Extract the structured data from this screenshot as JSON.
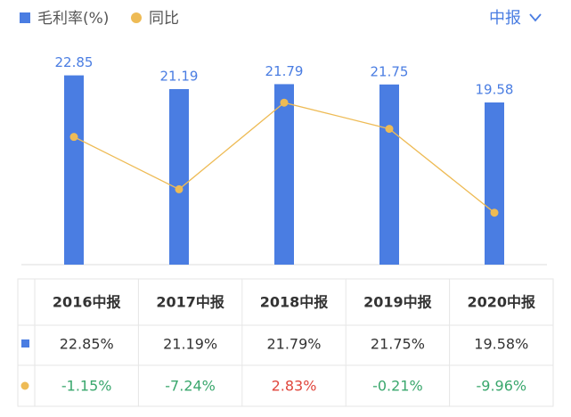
{
  "chart_data": {
    "type": "bar_line",
    "categories": [
      "2016中报",
      "2017中报",
      "2018中报",
      "2019中报",
      "2020中报"
    ],
    "series": [
      {
        "name": "毛利率(%)",
        "type": "bar",
        "color": "#4a7de2",
        "values": [
          22.85,
          21.19,
          21.79,
          21.75,
          19.58
        ]
      },
      {
        "name": "同比",
        "type": "line",
        "axis": "y2",
        "color": "#eebb55",
        "values": [
          -1.15,
          -7.24,
          2.83,
          -0.21,
          -9.96
        ]
      }
    ],
    "ylim": [
      0,
      27
    ],
    "y2lim": [
      -16,
      10
    ],
    "positive_color": "#e0463c",
    "negative_color": "#3aa76d"
  },
  "period_selector": "中报",
  "table": {
    "rows": [
      [
        "22.85%",
        "21.19%",
        "21.79%",
        "21.75%",
        "19.58%"
      ],
      [
        "-1.15%",
        "-7.24%",
        "2.83%",
        "-0.21%",
        "-9.96%"
      ]
    ]
  }
}
